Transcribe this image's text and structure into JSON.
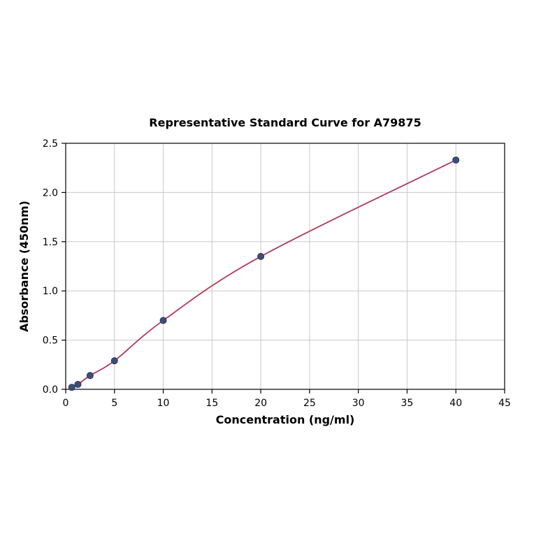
{
  "chart_data": {
    "type": "line",
    "title": "Representative Standard Curve for A79875",
    "xlabel": "Concentration (ng/ml)",
    "ylabel": "Absorbance (450nm)",
    "xlim": [
      0,
      45
    ],
    "ylim": [
      0,
      2.5
    ],
    "xticks": [
      0,
      5,
      10,
      15,
      20,
      25,
      30,
      35,
      40,
      45
    ],
    "yticks": [
      0.0,
      0.5,
      1.0,
      1.5,
      2.0,
      2.5
    ],
    "grid": true,
    "legend": "none",
    "series": [
      {
        "name": "standard-curve",
        "x": [
          0.625,
          1.25,
          2.5,
          5,
          10,
          20,
          40
        ],
        "y": [
          0.02,
          0.05,
          0.14,
          0.29,
          0.7,
          1.35,
          2.33
        ]
      }
    ],
    "colors": {
      "line": "#b03a5b",
      "marker_fill": "#3f4d7a",
      "marker_edge": "#2c3857",
      "grid": "#c9c9c9",
      "axis": "#000000",
      "background": "#ffffff"
    }
  }
}
